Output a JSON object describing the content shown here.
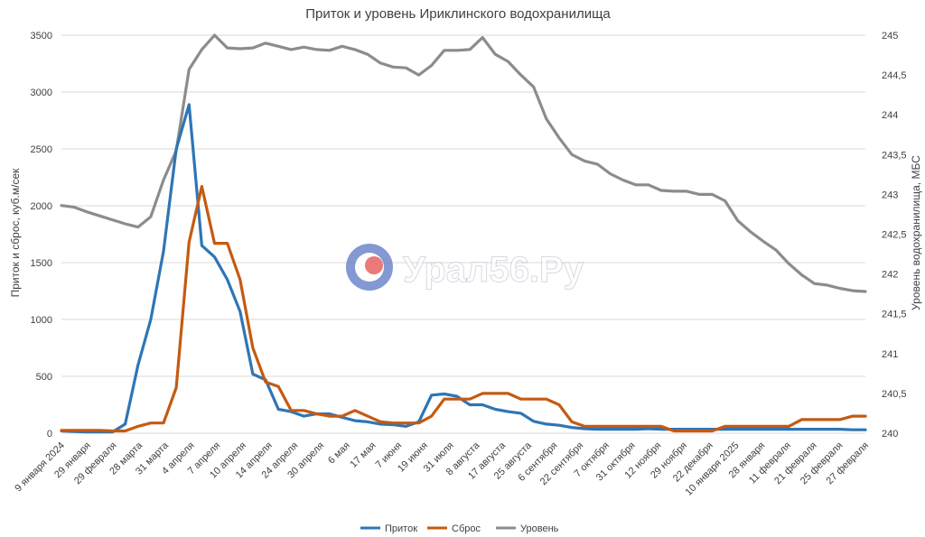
{
  "watermark": "Урал56.Ру",
  "chart_data": {
    "type": "line",
    "title": "Приток и уровень Ириклинского водохранилища",
    "ylabel": "Приток и сброс, куб.м/сек",
    "y2label": "Уровень водохранилища, МБС",
    "ylim": [
      0,
      3500
    ],
    "y2lim": [
      240,
      245
    ],
    "yticks": [
      0,
      500,
      1000,
      1500,
      2000,
      2500,
      3000,
      3500
    ],
    "y2ticks": [
      "240",
      "240,5",
      "241",
      "241,5",
      "242",
      "242,5",
      "243",
      "243,5",
      "244",
      "244,5",
      "245"
    ],
    "grid": true,
    "legend_position": "bottom",
    "xtick_labels": [
      "9 января 2024",
      "29 января",
      "29 февраля",
      "28 марта",
      "31 марта",
      "4 апреля",
      "7 апреля",
      "10 апреля",
      "14 апреля",
      "24 апреля",
      "30 апреля",
      "6 мая",
      "17 мая",
      "7 июня",
      "19 июня",
      "31 июля",
      "8 августа",
      "17 августа",
      "25 августа",
      "6 сентября",
      "22 сентября",
      "7 октября",
      "31 октября",
      "12 ноября",
      "29 ноября",
      "22 декабря",
      "10 января 2025",
      "28 января",
      "11 февраля",
      "21 февраля",
      "25 февраля",
      "27 февраля"
    ],
    "series": [
      {
        "name": "Приток",
        "color": "#2e75b6",
        "axis": "left",
        "values": [
          20,
          15,
          10,
          10,
          10,
          80,
          600,
          1000,
          1600,
          2500,
          2890,
          1650,
          1550,
          1350,
          1070,
          520,
          470,
          210,
          190,
          150,
          170,
          170,
          140,
          110,
          100,
          80,
          75,
          60,
          100,
          335,
          345,
          325,
          250,
          250,
          210,
          190,
          175,
          105,
          80,
          70,
          50,
          40,
          35,
          35,
          35,
          35,
          40,
          35,
          35,
          35,
          35,
          35,
          35,
          35,
          35,
          35,
          35,
          35,
          35,
          35,
          35,
          35,
          30,
          30
        ]
      },
      {
        "name": "Сброс",
        "color": "#c55a11",
        "axis": "left",
        "values": [
          25,
          25,
          25,
          25,
          20,
          20,
          60,
          90,
          90,
          400,
          1680,
          2170,
          1670,
          1670,
          1350,
          750,
          450,
          410,
          200,
          200,
          170,
          150,
          150,
          200,
          150,
          100,
          90,
          90,
          90,
          150,
          300,
          300,
          300,
          350,
          350,
          350,
          300,
          300,
          300,
          250,
          100,
          60,
          60,
          60,
          60,
          60,
          60,
          60,
          20,
          20,
          20,
          20,
          60,
          60,
          60,
          60,
          60,
          60,
          120,
          120,
          120,
          120,
          150,
          150
        ]
      },
      {
        "name": "Уровень",
        "color": "#8c8c8c",
        "axis": "right",
        "values": [
          242.86,
          242.84,
          242.78,
          242.73,
          242.68,
          242.63,
          242.59,
          242.72,
          243.18,
          243.55,
          244.57,
          244.82,
          245.0,
          244.84,
          244.83,
          244.84,
          244.9,
          244.86,
          244.82,
          244.85,
          244.82,
          244.81,
          244.86,
          244.82,
          244.76,
          244.65,
          244.6,
          244.59,
          244.5,
          244.62,
          244.81,
          244.81,
          244.82,
          244.97,
          244.76,
          244.67,
          244.5,
          244.35,
          243.95,
          243.71,
          243.5,
          243.42,
          243.38,
          243.26,
          243.18,
          243.12,
          243.12,
          243.05,
          243.04,
          243.04,
          243.0,
          243.0,
          242.92,
          242.67,
          242.53,
          242.41,
          242.3,
          242.13,
          241.99,
          241.88,
          241.86,
          241.82,
          241.79,
          241.78
        ]
      }
    ]
  }
}
